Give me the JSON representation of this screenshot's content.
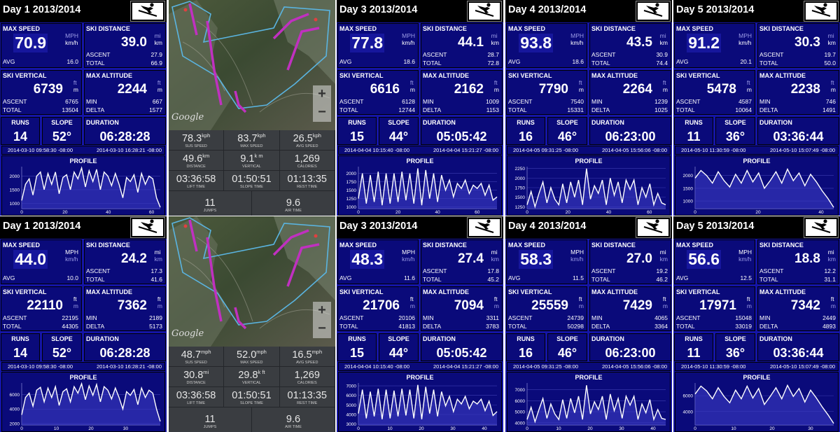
{
  "colors": {
    "panel_bg": "#1414a8",
    "box_bg": "#0a0a7a",
    "title_bg": "#000000",
    "map_stats_bg": "#3a3d41"
  },
  "labels": {
    "max_speed": "MAX SPEED",
    "ski_distance": "SKI DISTANCE",
    "avg": "AVG",
    "ascent": "ASCENT",
    "total": "TOTAL",
    "ski_vertical": "SKI VERTICAL",
    "max_altitude": "MAX ALTITUDE",
    "min": "MIN",
    "delta": "DELTA",
    "runs": "RUNS",
    "slope": "SLOPE",
    "duration": "DURATION",
    "profile": "PROFILE"
  },
  "ski_icon": "skier-icon",
  "panels": [
    {
      "title": "Day 1 2013/2014",
      "speed": "70.9",
      "speed_u1": "MPH",
      "speed_u2": "km/h",
      "speed_sel": 2,
      "avg": "16.0",
      "dist": "39.0",
      "dist_u1": "mi",
      "dist_u2": "km",
      "dist_sel": 2,
      "dist_ascent": "27.9",
      "dist_total": "66.9",
      "vert": "6739",
      "vert_u1": "ft",
      "vert_u2": "m",
      "vert_sel": 2,
      "vert_ascent": "6765",
      "vert_total": "13504",
      "alt": "2244",
      "alt_u1": "ft",
      "alt_u2": "m",
      "alt_sel": 2,
      "alt_min": "667",
      "alt_delta": "1577",
      "runs": "14",
      "slope": "52°",
      "duration": "06:28:28",
      "start": "2014-03-10 09:58:30 -08:00",
      "end": "2014-03-10 16:28:21 -08:00",
      "yticks": [
        "2000",
        "1500",
        "1000"
      ],
      "ymin": 800,
      "ymax": 2350,
      "xticks": [
        "0",
        "20",
        "40",
        "60"
      ],
      "xmax": 64,
      "profile": [
        1100,
        1700,
        1900,
        1300,
        2000,
        2150,
        1500,
        2100,
        1700,
        2150,
        1350,
        1950,
        2050,
        1500,
        2150,
        1900,
        2300,
        1600,
        2200,
        1800,
        2250,
        1500,
        2150,
        2000,
        1650,
        2100,
        1700,
        1200,
        1950,
        1800,
        2050,
        1400,
        2100,
        1700,
        2000,
        1900,
        1200,
        850
      ]
    },
    {
      "title": "Day 3 2013/2014",
      "speed": "77.8",
      "speed_u1": "MPH",
      "speed_u2": "km/h",
      "speed_sel": 2,
      "avg": "18.6",
      "dist": "44.1",
      "dist_u1": "mi",
      "dist_u2": "km",
      "dist_sel": 2,
      "dist_ascent": "28.7",
      "dist_total": "72.8",
      "vert": "6616",
      "vert_u1": "ft",
      "vert_u2": "m",
      "vert_sel": 2,
      "vert_ascent": "6128",
      "vert_total": "12744",
      "alt": "2162",
      "alt_u1": "ft",
      "alt_u2": "m",
      "alt_sel": 2,
      "alt_min": "1009",
      "alt_delta": "1153",
      "runs": "15",
      "slope": "44°",
      "duration": "05:05:42",
      "start": "2014-04-04 10:15:40 -08:00",
      "end": "2014-04-04 15:21:27 -08:00",
      "yticks": [
        "2000",
        "1750",
        "1500",
        "1250",
        "1000"
      ],
      "ymin": 950,
      "ymax": 2200,
      "xticks": [
        "0",
        "20",
        "40",
        "60"
      ],
      "xmax": 70,
      "profile": [
        1250,
        2000,
        1100,
        1950,
        1150,
        2050,
        1050,
        2000,
        1100,
        2000,
        1150,
        2050,
        1200,
        2000,
        1100,
        2150,
        1050,
        2100,
        1250,
        2000,
        1150,
        1950,
        1500,
        1800,
        1300,
        1700,
        1550,
        1800,
        1400,
        1650,
        1550,
        1700,
        1350,
        1650,
        1200,
        1300
      ]
    },
    {
      "title": "Day 4 2013/2014",
      "speed": "93.8",
      "speed_u1": "MPH",
      "speed_u2": "km/h",
      "speed_sel": 2,
      "avg": "18.6",
      "dist": "43.5",
      "dist_u1": "mi",
      "dist_u2": "km",
      "dist_sel": 2,
      "dist_ascent": "30.9",
      "dist_total": "74.4",
      "vert": "7790",
      "vert_u1": "ft",
      "vert_u2": "m",
      "vert_sel": 2,
      "vert_ascent": "7540",
      "vert_total": "15331",
      "alt": "2264",
      "alt_u1": "ft",
      "alt_u2": "m",
      "alt_sel": 2,
      "alt_min": "1239",
      "alt_delta": "1025",
      "runs": "16",
      "slope": "46°",
      "duration": "06:23:00",
      "start": "2014-04-05 09:31:25 -08:00",
      "end": "2014-04-05 15:56:06 -08:00",
      "yticks": [
        "2250",
        "2000",
        "1750",
        "1500",
        "1250"
      ],
      "ymin": 1200,
      "ymax": 2300,
      "xticks": [
        "0",
        "20",
        "40",
        "60"
      ],
      "xmax": 68,
      "profile": [
        1300,
        1650,
        1250,
        1600,
        1900,
        1350,
        1750,
        1450,
        1300,
        1850,
        1350,
        1900,
        1500,
        1950,
        1300,
        2250,
        1450,
        1800,
        1600,
        1950,
        1300,
        2000,
        1550,
        1900,
        1350,
        1950,
        1700,
        1950,
        1300,
        1750,
        1500,
        1850,
        1300,
        1600,
        1350,
        1300
      ]
    },
    {
      "title": "Day 5 2013/2014",
      "speed": "91.2",
      "speed_u1": "MPH",
      "speed_u2": "km/h",
      "speed_sel": 2,
      "avg": "20.1",
      "dist": "30.3",
      "dist_u1": "mi",
      "dist_u2": "km",
      "dist_sel": 2,
      "dist_ascent": "19.7",
      "dist_total": "50.0",
      "vert": "5478",
      "vert_u1": "ft",
      "vert_u2": "m",
      "vert_sel": 2,
      "vert_ascent": "4587",
      "vert_total": "10064",
      "alt": "2238",
      "alt_u1": "ft",
      "alt_u2": "m",
      "alt_sel": 2,
      "alt_min": "746",
      "alt_delta": "1491",
      "runs": "11",
      "slope": "36°",
      "duration": "03:36:44",
      "start": "2014-05-10 11:30:59 -08:00",
      "end": "2014-05-10 15:07:49 -08:00",
      "yticks": [
        "2000",
        "1500",
        "1000"
      ],
      "ymin": 700,
      "ymax": 2350,
      "xticks": [
        "0",
        "20",
        "40"
      ],
      "xmax": 44,
      "profile": [
        1900,
        2200,
        2000,
        1700,
        2150,
        1800,
        1550,
        2050,
        1700,
        2200,
        1750,
        2100,
        1500,
        1800,
        2150,
        1700,
        2250,
        1800,
        2100,
        1600,
        2050,
        1750,
        1400,
        1100,
        750
      ]
    },
    {
      "title": "Day 1 2013/2014",
      "speed": "44.0",
      "speed_u1": "MPH",
      "speed_u2": "km/h",
      "speed_sel": 1,
      "avg": "10.0",
      "dist": "24.2",
      "dist_u1": "mi",
      "dist_u2": "km",
      "dist_sel": 1,
      "dist_ascent": "17.3",
      "dist_total": "41.6",
      "vert": "22110",
      "vert_u1": "ft",
      "vert_u2": "m",
      "vert_sel": 1,
      "vert_ascent": "22195",
      "vert_total": "44305",
      "alt": "7362",
      "alt_u1": "ft",
      "alt_u2": "m",
      "alt_sel": 1,
      "alt_min": "2189",
      "alt_delta": "5173",
      "runs": "14",
      "slope": "52°",
      "duration": "06:28:28",
      "start": "2014-03-10 09:58:30 -08:00",
      "end": "2014-03-10 16:28:21 -08:00",
      "yticks": [
        "6000",
        "4000",
        "2000"
      ],
      "ymin": 1800,
      "ymax": 7600,
      "xticks": [
        "0",
        "10",
        "20",
        "30"
      ],
      "xmax": 40,
      "profile": [
        3200,
        5600,
        6200,
        4400,
        6600,
        7000,
        5000,
        6900,
        5600,
        7100,
        4500,
        6400,
        6800,
        5000,
        7100,
        6200,
        7500,
        5300,
        7200,
        5900,
        7400,
        5000,
        7100,
        6600,
        5400,
        6900,
        5600,
        4000,
        6400,
        5900,
        6700,
        4600,
        6900,
        5600,
        6600,
        6200,
        4000,
        2300
      ]
    },
    {
      "title": "Day 3 2013/2014",
      "speed": "48.3",
      "speed_u1": "MPH",
      "speed_u2": "km/h",
      "speed_sel": 1,
      "avg": "11.6",
      "dist": "27.4",
      "dist_u1": "mi",
      "dist_u2": "km",
      "dist_sel": 1,
      "dist_ascent": "17.8",
      "dist_total": "45.2",
      "vert": "21706",
      "vert_u1": "ft",
      "vert_u2": "m",
      "vert_sel": 1,
      "vert_ascent": "20106",
      "vert_total": "41813",
      "alt": "7094",
      "alt_u1": "ft",
      "alt_u2": "m",
      "alt_sel": 1,
      "alt_min": "3311",
      "alt_delta": "3783",
      "runs": "15",
      "slope": "44°",
      "duration": "05:05:42",
      "start": "2014-04-04 10:15:40 -08:00",
      "end": "2014-04-04 15:21:27 -08:00",
      "yticks": [
        "7000",
        "6000",
        "5000",
        "4000",
        "3000"
      ],
      "ymin": 2900,
      "ymax": 7300,
      "xticks": [
        "0",
        "10",
        "20",
        "30",
        "40"
      ],
      "xmax": 44,
      "profile": [
        4100,
        6600,
        3600,
        6400,
        3800,
        6700,
        3500,
        6600,
        3600,
        6500,
        3800,
        6700,
        3900,
        6600,
        3600,
        7100,
        3500,
        6900,
        4100,
        6600,
        3800,
        6400,
        4900,
        5900,
        4300,
        5600,
        5100,
        5900,
        4600,
        5400,
        5100,
        5600,
        4400,
        5400,
        3900,
        4300
      ]
    },
    {
      "title": "Day 4 2013/2014",
      "speed": "58.3",
      "speed_u1": "MPH",
      "speed_u2": "km/h",
      "speed_sel": 1,
      "avg": "11.5",
      "dist": "27.0",
      "dist_u1": "mi",
      "dist_u2": "km",
      "dist_sel": 1,
      "dist_ascent": "19.2",
      "dist_total": "46.2",
      "vert": "25559",
      "vert_u1": "ft",
      "vert_u2": "m",
      "vert_sel": 1,
      "vert_ascent": "24739",
      "vert_total": "50298",
      "alt": "7429",
      "alt_u1": "ft",
      "alt_u2": "m",
      "alt_sel": 1,
      "alt_min": "4065",
      "alt_delta": "3364",
      "runs": "16",
      "slope": "46°",
      "duration": "06:23:00",
      "start": "2014-04-05 09:31:25 -08:00",
      "end": "2014-04-05 15:56:06 -08:00",
      "yticks": [
        "7000",
        "6000",
        "5000",
        "4000"
      ],
      "ymin": 3800,
      "ymax": 7600,
      "xticks": [
        "0",
        "10",
        "20",
        "30",
        "40"
      ],
      "xmax": 44,
      "profile": [
        4300,
        5400,
        4100,
        5200,
        6200,
        4400,
        5700,
        4800,
        4300,
        6100,
        4400,
        6200,
        4900,
        6400,
        4300,
        7400,
        4800,
        5900,
        5200,
        6400,
        4300,
        6600,
        5100,
        6200,
        4400,
        6400,
        5600,
        6400,
        4300,
        5700,
        4900,
        6100,
        4300,
        5200,
        4400,
        4300
      ]
    },
    {
      "title": "Day 5 2013/2014",
      "speed": "56.6",
      "speed_u1": "MPH",
      "speed_u2": "km/h",
      "speed_sel": 1,
      "avg": "12.5",
      "dist": "18.8",
      "dist_u1": "mi",
      "dist_u2": "km",
      "dist_sel": 1,
      "dist_ascent": "12.2",
      "dist_total": "31.1",
      "vert": "17971",
      "vert_u1": "ft",
      "vert_u2": "m",
      "vert_sel": 1,
      "vert_ascent": "15048",
      "vert_total": "33019",
      "alt": "7342",
      "alt_u1": "ft",
      "alt_u2": "m",
      "alt_sel": 1,
      "alt_min": "2449",
      "alt_delta": "4893",
      "runs": "11",
      "slope": "36°",
      "duration": "03:36:44",
      "start": "2014-05-10 11:30:59 -08:00",
      "end": "2014-05-10 15:07:49 -08:00",
      "yticks": [
        "6000",
        "4000"
      ],
      "ymin": 2300,
      "ymax": 7600,
      "xticks": [
        "0",
        "10",
        "20",
        "30"
      ],
      "xmax": 36,
      "profile": [
        6200,
        7200,
        6600,
        5600,
        7000,
        5900,
        5100,
        6700,
        5600,
        7200,
        5700,
        6900,
        4900,
        5900,
        7000,
        5600,
        7300,
        5900,
        6900,
        5200,
        6700,
        5700,
        4600,
        3600,
        2500
      ]
    }
  ],
  "maps": [
    {
      "google": "Google",
      "zoom_in": "+",
      "zoom_out": "−",
      "stats": [
        [
          "78.3",
          "kph",
          "SUS SPEED"
        ],
        [
          "83.7",
          "kph",
          "MAX SPEED"
        ],
        [
          "26.5",
          "kph",
          "AVG SPEED"
        ],
        [
          "49.6",
          "km",
          "DISTANCE"
        ],
        [
          "9.1",
          "k m",
          "VERTICAL"
        ],
        [
          "1,269",
          "",
          "CALORIES"
        ],
        [
          "03:36:58",
          "",
          "LIFT TIME"
        ],
        [
          "01:50:51",
          "",
          "SLOPE TIME"
        ],
        [
          "01:13:35",
          "",
          "REST TIME"
        ]
      ],
      "bottom": [
        [
          "11",
          "JUMPS"
        ],
        [
          "9.6",
          "AIR TIME"
        ]
      ]
    },
    {
      "google": "Google",
      "zoom_in": "+",
      "zoom_out": "−",
      "stats": [
        [
          "48.7",
          "mph",
          "SUS SPEED"
        ],
        [
          "52.0",
          "mph",
          "MAX SPEED"
        ],
        [
          "16.5",
          "mph",
          "AVG SPEED"
        ],
        [
          "30.8",
          "mi",
          "DISTANCE"
        ],
        [
          "29.8",
          "k ft",
          "VERTICAL"
        ],
        [
          "1,269",
          "",
          "CALORIES"
        ],
        [
          "03:36:58",
          "",
          "LIFT TIME"
        ],
        [
          "01:50:51",
          "",
          "SLOPE TIME"
        ],
        [
          "01:13:35",
          "",
          "REST TIME"
        ]
      ],
      "bottom": [
        [
          "11",
          "JUMPS"
        ],
        [
          "9.6",
          "AIR TIME"
        ]
      ]
    }
  ]
}
